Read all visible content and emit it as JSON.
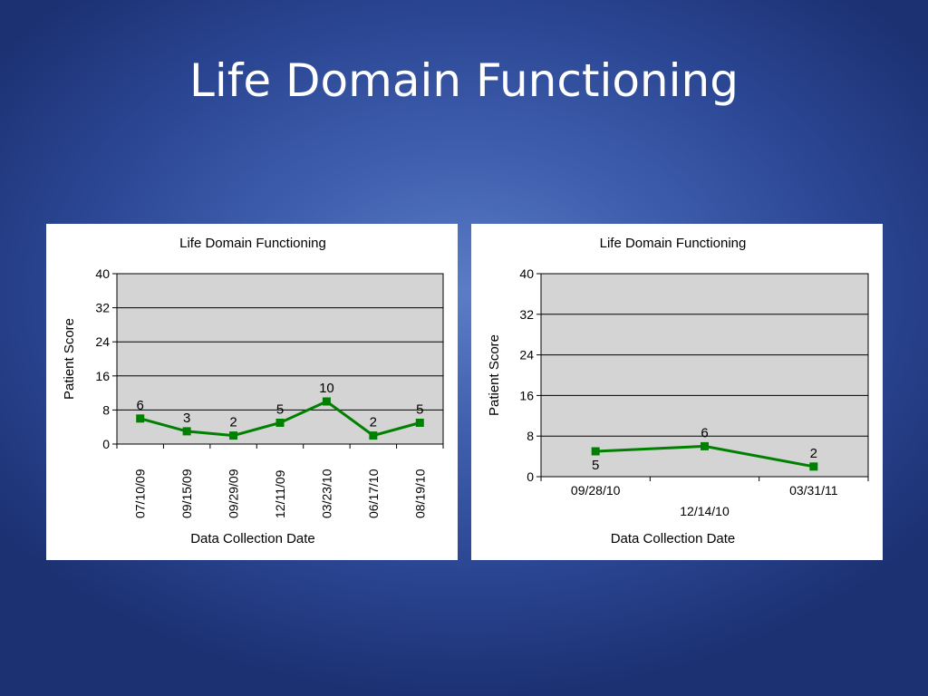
{
  "slide": {
    "title": "Life Domain Functioning"
  },
  "chart_data": [
    {
      "type": "line",
      "title": "Life Domain Functioning",
      "xlabel": "Data Collection Date",
      "ylabel": "Patient Score",
      "ylim": [
        0,
        40
      ],
      "yticks": [
        0,
        8,
        16,
        24,
        32,
        40
      ],
      "grid": true,
      "categories": [
        "07/10/09",
        "09/15/09",
        "09/29/09",
        "12/11/09",
        "03/23/10",
        "06/17/10",
        "08/19/10"
      ],
      "values": [
        6,
        3,
        2,
        5,
        10,
        2,
        5
      ],
      "colors": {
        "series": "#008000",
        "plot_bg": "#d4d4d4"
      }
    },
    {
      "type": "line",
      "title": "Life Domain Functioning",
      "xlabel": "Data Collection Date",
      "ylabel": "Patient Score",
      "ylim": [
        0,
        40
      ],
      "yticks": [
        0,
        8,
        16,
        24,
        32,
        40
      ],
      "grid": true,
      "categories": [
        "09/28/10",
        "12/14/10",
        "03/31/11"
      ],
      "values": [
        5,
        6,
        2
      ],
      "colors": {
        "series": "#008000",
        "plot_bg": "#d4d4d4"
      }
    }
  ]
}
